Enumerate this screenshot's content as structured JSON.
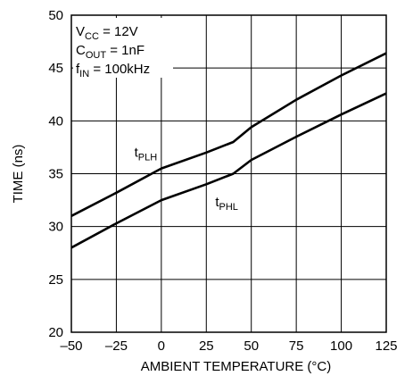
{
  "chart_data": {
    "type": "line",
    "title": "",
    "xlabel": "AMBIENT TEMPERATURE (°C)",
    "ylabel": "TIME (ns)",
    "xlim": [
      -50,
      125
    ],
    "ylim": [
      20,
      50
    ],
    "xticks": [
      -50,
      -25,
      0,
      25,
      50,
      75,
      100,
      125
    ],
    "xtick_labels": [
      "–50",
      "–25",
      "0",
      "25",
      "50",
      "75",
      "100",
      "125"
    ],
    "yticks": [
      20,
      25,
      30,
      35,
      40,
      45,
      50
    ],
    "ytick_labels": [
      "20",
      "25",
      "30",
      "35",
      "40",
      "45",
      "50"
    ],
    "grid": true,
    "conditions": [
      {
        "main": "V",
        "sub": "CC",
        "rest": " = 12V"
      },
      {
        "main": "C",
        "sub": "OUT",
        "rest": " = 1nF"
      },
      {
        "main": "f",
        "sub": "IN",
        "rest": " = 100kHz"
      }
    ],
    "series": [
      {
        "name": "tPLH",
        "label_main": "t",
        "label_sub": "PLH",
        "x": [
          -50,
          -25,
          0,
          25,
          40,
          50,
          75,
          100,
          125
        ],
        "y": [
          31.0,
          33.2,
          35.5,
          37.0,
          38.0,
          39.4,
          42.0,
          44.3,
          46.4
        ]
      },
      {
        "name": "tPHL",
        "label_main": "t",
        "label_sub": "PHL",
        "x": [
          -50,
          -25,
          0,
          25,
          40,
          50,
          75,
          100,
          125
        ],
        "y": [
          28.0,
          30.3,
          32.5,
          34.0,
          35.0,
          36.3,
          38.5,
          40.6,
          42.6
        ]
      }
    ]
  }
}
